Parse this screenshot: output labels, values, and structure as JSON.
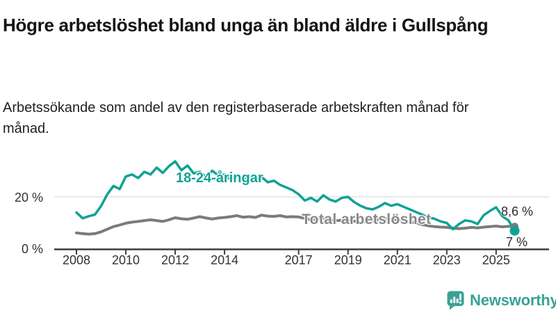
{
  "header": {
    "title": "Högre arbetslöshet bland unga än bland äldre i Gullspång",
    "subtitle": "Arbetssökande som andel av den registerbaserade arbetskraften månad för månad."
  },
  "chart_data": {
    "type": "line",
    "title": "Högre arbetslöshet bland unga än bland äldre i Gullspång",
    "subtitle": "Arbetssökande som andel av den registerbaserade arbetskraften månad för månad.",
    "unit": "%",
    "x_start": 2008,
    "x_step_years": 0.25,
    "x_range": [
      2008,
      2025.75
    ],
    "x_tick_years": [
      2008,
      2010,
      2012,
      2014,
      2017,
      2019,
      2021,
      2023,
      2025
    ],
    "x_tick_labels": [
      "2008",
      "2010",
      "2012",
      "2014",
      "2017",
      "2019",
      "2021",
      "2023",
      "2025"
    ],
    "y_axis": {
      "range": [
        0,
        36
      ],
      "ticks": [
        {
          "value": 0,
          "label": "0 %"
        },
        {
          "value": 20,
          "label": "20 %"
        }
      ]
    },
    "grid": "horizontal gridline at 20 % only",
    "legend_position": "inline labels next to lines",
    "series": [
      {
        "name": "Total arbetslöshet",
        "color": "#7b7b7b",
        "end_value": 8.6,
        "end_label": "8,6 %",
        "values": [
          6.2,
          5.9,
          5.7,
          5.9,
          6.6,
          7.6,
          8.6,
          9.2,
          9.9,
          10.3,
          10.6,
          10.9,
          11.2,
          10.9,
          10.6,
          11.2,
          12.0,
          11.6,
          11.4,
          11.9,
          12.4,
          11.9,
          11.5,
          11.9,
          12.1,
          12.4,
          12.8,
          12.2,
          12.4,
          12.1,
          13.0,
          12.6,
          12.5,
          12.8,
          12.3,
          12.4,
          12.3,
          11.7,
          11.2,
          11.6,
          11.8,
          11.2,
          10.9,
          11.0,
          11.0,
          10.7,
          10.2,
          10.5,
          10.8,
          11.4,
          11.7,
          11.2,
          11.2,
          10.8,
          10.4,
          10.0,
          9.4,
          8.9,
          8.6,
          8.4,
          8.3,
          8.0,
          7.8,
          8.0,
          8.3,
          8.1,
          8.4,
          8.6,
          8.8,
          8.5,
          8.7,
          8.6
        ]
      },
      {
        "name": "18-24-åringar",
        "color": "#0fa294",
        "end_value": 7.0,
        "end_label": "7 %",
        "values": [
          14.0,
          11.8,
          12.6,
          13.2,
          16.5,
          21.0,
          24.2,
          23.0,
          27.8,
          28.6,
          27.2,
          29.6,
          28.6,
          31.2,
          29.2,
          31.8,
          33.6,
          30.2,
          32.0,
          29.0,
          29.6,
          27.6,
          30.0,
          28.2,
          28.6,
          26.6,
          28.2,
          27.0,
          27.6,
          26.2,
          27.6,
          25.6,
          26.2,
          24.6,
          23.6,
          22.6,
          21.0,
          18.6,
          19.6,
          18.2,
          20.6,
          19.0,
          18.2,
          19.6,
          20.0,
          18.0,
          16.6,
          15.6,
          15.2,
          16.2,
          17.6,
          16.6,
          17.2,
          16.2,
          15.2,
          14.2,
          13.2,
          12.2,
          11.6,
          10.6,
          10.0,
          7.6,
          9.6,
          11.0,
          10.6,
          9.6,
          13.0,
          14.6,
          16.0,
          12.6,
          11.0,
          7.0
        ]
      }
    ]
  },
  "branding": {
    "logo_text": "Newsworthy",
    "logo_icon": "newsworthy-speech-bubble-barchart-icon",
    "brand_color": "#38a295"
  }
}
